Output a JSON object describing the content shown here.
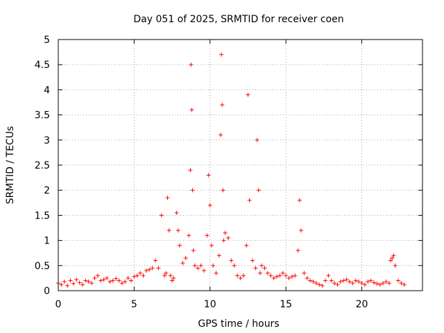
{
  "chart_data": {
    "type": "scatter",
    "title": "Day 051 of 2025, SRMTID for receiver coen",
    "xlabel": "GPS time / hours",
    "ylabel": "SRMTID / TECUs",
    "xlim": [
      0,
      24
    ],
    "ylim": [
      0,
      5
    ],
    "xticks": [
      0,
      5,
      10,
      15,
      20
    ],
    "xtick_labels": [
      "0",
      "5",
      "10",
      "15",
      "20"
    ],
    "yticks": [
      0,
      0.5,
      1,
      1.5,
      2,
      2.5,
      3,
      3.5,
      4,
      4.5,
      5
    ],
    "ytick_labels": [
      "0",
      "0.5",
      "1",
      "1.5",
      "2",
      "2.5",
      "3",
      "3.5",
      "4",
      "4.5",
      "5"
    ],
    "grid": true,
    "marker": "+",
    "series": [
      {
        "name": "SRMTID",
        "color": "#ff0000",
        "x": [
          0.0,
          0.2,
          0.4,
          0.6,
          0.8,
          1.0,
          1.2,
          1.4,
          1.6,
          1.8,
          2.0,
          2.2,
          2.4,
          2.6,
          2.8,
          3.0,
          3.2,
          3.4,
          3.6,
          3.8,
          4.0,
          4.2,
          4.4,
          4.6,
          4.8,
          5.0,
          5.2,
          5.4,
          5.6,
          5.8,
          6.0,
          6.2,
          6.4,
          6.6,
          6.8,
          7.0,
          7.1,
          7.2,
          7.3,
          7.4,
          7.5,
          7.6,
          7.8,
          7.9,
          8.0,
          8.2,
          8.4,
          8.6,
          8.7,
          8.75,
          8.8,
          8.85,
          8.9,
          9.0,
          9.2,
          9.4,
          9.6,
          9.8,
          9.9,
          10.0,
          10.1,
          10.2,
          10.4,
          10.6,
          10.7,
          10.75,
          10.8,
          10.85,
          10.9,
          11.0,
          11.2,
          11.4,
          11.6,
          11.8,
          12.0,
          12.2,
          12.4,
          12.5,
          12.6,
          12.8,
          13.0,
          13.1,
          13.2,
          13.3,
          13.4,
          13.6,
          13.8,
          14.0,
          14.2,
          14.4,
          14.6,
          14.8,
          15.0,
          15.2,
          15.4,
          15.6,
          15.8,
          15.9,
          16.0,
          16.2,
          16.4,
          16.6,
          16.8,
          17.0,
          17.2,
          17.4,
          17.6,
          17.8,
          18.0,
          18.2,
          18.4,
          18.6,
          18.8,
          19.0,
          19.2,
          19.4,
          19.6,
          19.8,
          20.0,
          20.2,
          20.4,
          20.6,
          20.8,
          21.0,
          21.2,
          21.4,
          21.6,
          21.8,
          21.9,
          22.0,
          22.1,
          22.2,
          22.4,
          22.6,
          22.8
        ],
        "y": [
          0.15,
          0.12,
          0.18,
          0.1,
          0.2,
          0.14,
          0.22,
          0.16,
          0.12,
          0.2,
          0.18,
          0.15,
          0.25,
          0.3,
          0.2,
          0.22,
          0.25,
          0.18,
          0.2,
          0.24,
          0.2,
          0.15,
          0.18,
          0.25,
          0.2,
          0.28,
          0.3,
          0.35,
          0.3,
          0.4,
          0.42,
          0.45,
          0.6,
          0.45,
          1.5,
          0.3,
          0.35,
          1.85,
          1.2,
          0.3,
          0.2,
          0.25,
          1.55,
          1.2,
          0.9,
          0.55,
          0.65,
          1.1,
          2.4,
          4.5,
          3.6,
          2.0,
          0.8,
          0.5,
          0.45,
          0.5,
          0.4,
          1.1,
          2.3,
          1.7,
          0.9,
          0.5,
          0.35,
          0.7,
          3.1,
          4.7,
          3.7,
          2.0,
          1.0,
          1.15,
          1.05,
          0.6,
          0.5,
          0.3,
          0.25,
          0.3,
          0.9,
          3.9,
          1.8,
          0.6,
          0.45,
          3.0,
          2.0,
          0.35,
          0.5,
          0.45,
          0.35,
          0.3,
          0.25,
          0.28,
          0.3,
          0.35,
          0.3,
          0.25,
          0.28,
          0.3,
          0.8,
          1.8,
          1.2,
          0.35,
          0.25,
          0.2,
          0.18,
          0.15,
          0.12,
          0.1,
          0.2,
          0.3,
          0.2,
          0.15,
          0.12,
          0.18,
          0.2,
          0.22,
          0.18,
          0.15,
          0.2,
          0.18,
          0.15,
          0.12,
          0.18,
          0.2,
          0.16,
          0.14,
          0.12,
          0.15,
          0.18,
          0.15,
          0.6,
          0.65,
          0.7,
          0.5,
          0.2,
          0.15,
          0.12
        ]
      }
    ]
  }
}
